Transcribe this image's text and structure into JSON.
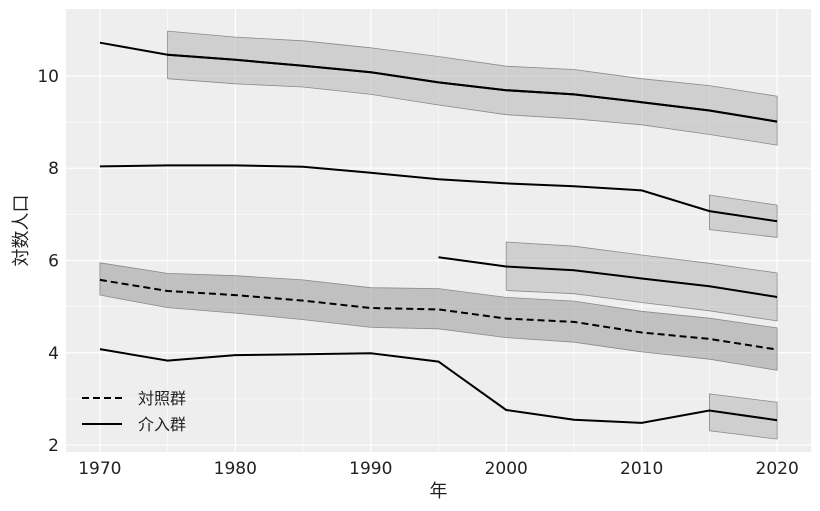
{
  "chart_data": {
    "type": "line",
    "xlabel": "年",
    "ylabel": "対数人口",
    "xlim": [
      1967.5,
      2022.5
    ],
    "ylim": [
      1.85,
      11.45
    ],
    "xticks": [
      1970,
      1980,
      1990,
      2000,
      2010,
      2020
    ],
    "yticks": [
      2,
      4,
      6,
      8,
      10
    ],
    "grid": true,
    "legend": {
      "placement": "lower-left",
      "entries": [
        {
          "label": "対照群",
          "style": "dashed"
        },
        {
          "label": "介入群",
          "style": "solid"
        }
      ]
    },
    "control_color": "#000000",
    "band_color": "#b0b0b0",
    "panel_color": "#eeeeee",
    "series": [
      {
        "group": "control",
        "x": [
          1970,
          1975,
          1980,
          1985,
          1990,
          1995,
          2000,
          2005,
          2010,
          2015,
          2020
        ],
        "y": [
          5.58,
          5.34,
          5.25,
          5.13,
          4.97,
          4.94,
          4.74,
          4.67,
          4.44,
          4.3,
          4.07
        ],
        "band_lower": [
          5.25,
          4.98,
          4.86,
          4.72,
          4.55,
          4.52,
          4.33,
          4.23,
          4.02,
          3.86,
          3.62
        ],
        "band_upper": [
          5.95,
          5.72,
          5.67,
          5.58,
          5.41,
          5.39,
          5.2,
          5.12,
          4.9,
          4.75,
          4.54
        ]
      },
      {
        "group": "treated",
        "x": [
          1970,
          1975,
          1980,
          1985,
          1990,
          1995,
          2000,
          2005,
          2010,
          2015,
          2020
        ],
        "y": [
          10.72,
          10.46,
          10.35,
          10.22,
          10.08,
          9.86,
          9.69,
          9.6,
          9.43,
          9.25,
          9.01
        ]
      },
      {
        "group": "treated",
        "x": [
          1975,
          1980,
          1985,
          1990,
          1995,
          2000,
          2005,
          2010,
          2015,
          2020
        ],
        "y": [
          10.46,
          10.35,
          10.22,
          10.08,
          9.86,
          9.69,
          9.6,
          9.43,
          9.25,
          9.01
        ],
        "band_lower": [
          9.94,
          9.83,
          9.76,
          9.6,
          9.37,
          9.16,
          9.07,
          8.94,
          8.73,
          8.5
        ],
        "band_upper": [
          10.97,
          10.84,
          10.76,
          10.61,
          10.42,
          10.21,
          10.14,
          9.94,
          9.79,
          9.56
        ]
      },
      {
        "group": "treated",
        "x": [
          1970,
          1975,
          1980,
          1985,
          1990,
          1995,
          2000,
          2005,
          2010,
          2015,
          2020
        ],
        "y": [
          8.04,
          8.06,
          8.06,
          8.03,
          7.9,
          7.76,
          7.67,
          7.61,
          7.52,
          7.07,
          6.85
        ]
      },
      {
        "group": "treated",
        "x": [
          2015,
          2020
        ],
        "y": [
          7.07,
          6.85
        ],
        "band_lower": [
          6.67,
          6.5
        ],
        "band_upper": [
          7.42,
          7.2
        ]
      },
      {
        "group": "treated",
        "x": [
          1995,
          2000,
          2005,
          2010,
          2015,
          2020
        ],
        "y": [
          6.07,
          5.87,
          5.79,
          5.61,
          5.44,
          5.21
        ],
        "band_lower": [
          null,
          5.35,
          5.28,
          5.09,
          4.91,
          4.69
        ],
        "band_upper": [
          null,
          6.4,
          6.31,
          6.12,
          5.94,
          5.73
        ]
      },
      {
        "group": "treated",
        "x": [
          1970,
          1975,
          1980,
          1985,
          1990,
          1995,
          2000,
          2005,
          2010,
          2015,
          2020
        ],
        "y": [
          4.08,
          3.83,
          3.95,
          3.97,
          3.99,
          3.81,
          2.76,
          2.55,
          2.48,
          2.75,
          2.54
        ]
      },
      {
        "group": "treated",
        "x": [
          2015,
          2020
        ],
        "y": [
          2.75,
          2.54
        ],
        "band_lower": [
          2.31,
          2.13
        ],
        "band_upper": [
          3.11,
          2.93
        ]
      }
    ]
  }
}
